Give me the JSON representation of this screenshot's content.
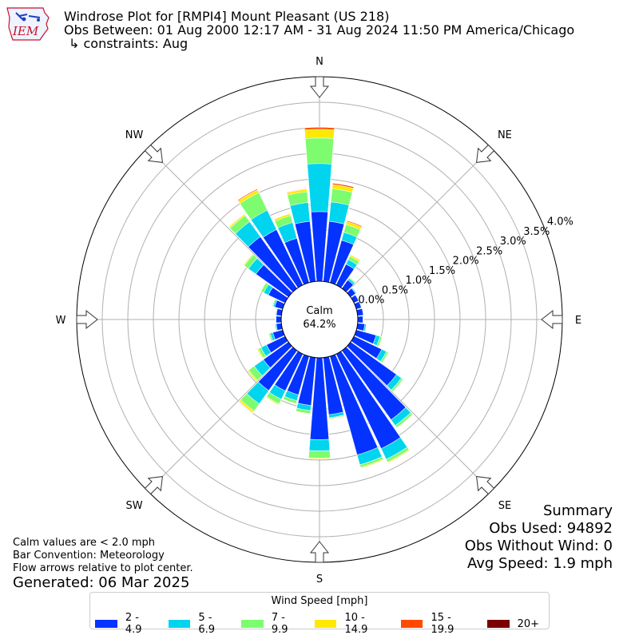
{
  "header": {
    "title_line1": "Windrose Plot for [RMPI4] Mount Pleasant (US 218)",
    "title_line2": "Obs Between: 01 Aug 2000 12:17 AM - 31 Aug 2024 11:50 PM America/Chicago",
    "title_line3": "↳ constraints: Aug",
    "logo_text": "IEM"
  },
  "footer_left": {
    "line1": "Calm values are < 2.0 mph",
    "line2": "Bar Convention: Meteorology",
    "line3": "Flow arrows relative to plot center.",
    "generated": "Generated: 06 Mar 2025"
  },
  "summary": {
    "title": "Summary",
    "obs_used": "Obs Used: 94892",
    "obs_without_wind": "Obs Without Wind: 0",
    "avg_speed": "Avg Speed: 1.9 mph"
  },
  "chart_data": {
    "type": "windrose",
    "calm_label": "Calm",
    "calm_value": "64.2%",
    "directions": [
      "N",
      "NE",
      "E",
      "SE",
      "S",
      "SW",
      "W",
      "NW"
    ],
    "radial_ticks": [
      "0.0%",
      "0.5%",
      "1.0%",
      "1.5%",
      "2.0%",
      "2.5%",
      "3.0%",
      "3.5%",
      "4.0%"
    ],
    "radial_range": [
      0.0,
      4.0
    ],
    "legend_title": "Wind Speed [mph]",
    "bins": [
      {
        "name": "2 - 4.9",
        "color": "#0433ff"
      },
      {
        "name": "5 - 6.9",
        "color": "#00d4ee"
      },
      {
        "name": "7 - 9.9",
        "color": "#7cfc6e"
      },
      {
        "name": "10 - 14.9",
        "color": "#ffe900"
      },
      {
        "name": "15 - 19.9",
        "color": "#ff4a00"
      },
      {
        "name": "20+",
        "color": "#7a0000"
      }
    ],
    "sector_width_deg": 10,
    "sectors": [
      {
        "dir": 0,
        "values": [
          1.36,
          2.3,
          2.8,
          2.97,
          3.01,
          3.01
        ]
      },
      {
        "dir": 10,
        "values": [
          1.18,
          1.56,
          1.82,
          1.9,
          1.93,
          1.93
        ]
      },
      {
        "dir": 20,
        "values": [
          0.86,
          1.02,
          1.18,
          1.24,
          1.26,
          1.26
        ]
      },
      {
        "dir": 30,
        "values": [
          0.45,
          0.55,
          0.62,
          0.65,
          0.66,
          0.66
        ]
      },
      {
        "dir": 40,
        "values": [
          0.2,
          0.24,
          0.26,
          0.27,
          0.27,
          0.27
        ]
      },
      {
        "dir": 50,
        "values": [
          0.12,
          0.14,
          0.15,
          0.15,
          0.15,
          0.15
        ]
      },
      {
        "dir": 60,
        "values": [
          0.1,
          0.11,
          0.12,
          0.12,
          0.12,
          0.12
        ]
      },
      {
        "dir": 70,
        "values": [
          0.1,
          0.11,
          0.12,
          0.12,
          0.12,
          0.12
        ]
      },
      {
        "dir": 80,
        "values": [
          0.11,
          0.12,
          0.13,
          0.13,
          0.13,
          0.13
        ]
      },
      {
        "dir": 90,
        "values": [
          0.1,
          0.11,
          0.12,
          0.12,
          0.12,
          0.12
        ]
      },
      {
        "dir": 100,
        "values": [
          0.14,
          0.17,
          0.18,
          0.18,
          0.18,
          0.18
        ]
      },
      {
        "dir": 110,
        "values": [
          0.4,
          0.48,
          0.52,
          0.53,
          0.53,
          0.53
        ]
      },
      {
        "dir": 120,
        "values": [
          0.6,
          0.7,
          0.74,
          0.75,
          0.75,
          0.75
        ]
      },
      {
        "dir": 130,
        "values": [
          1.1,
          1.22,
          1.26,
          1.27,
          1.27,
          1.27
        ]
      },
      {
        "dir": 140,
        "values": [
          1.66,
          1.8,
          1.85,
          1.86,
          1.86,
          1.86
        ]
      },
      {
        "dir": 150,
        "values": [
          2.05,
          2.28,
          2.34,
          2.36,
          2.36,
          2.36
        ]
      },
      {
        "dir": 160,
        "values": [
          2.0,
          2.2,
          2.25,
          2.27,
          2.27,
          2.27
        ]
      },
      {
        "dir": 170,
        "values": [
          1.12,
          1.18,
          1.2,
          1.21,
          1.21,
          1.21
        ]
      },
      {
        "dir": 180,
        "values": [
          1.6,
          1.82,
          1.96,
          1.98,
          1.98,
          1.98
        ]
      },
      {
        "dir": 190,
        "values": [
          0.94,
          1.04,
          1.1,
          1.11,
          1.11,
          1.11
        ]
      },
      {
        "dir": 200,
        "values": [
          0.78,
          0.9,
          0.96,
          0.97,
          0.97,
          0.97
        ]
      },
      {
        "dir": 210,
        "values": [
          0.8,
          0.98,
          1.08,
          1.1,
          1.1,
          1.1
        ]
      },
      {
        "dir": 220,
        "values": [
          0.96,
          1.28,
          1.45,
          1.49,
          1.5,
          1.5
        ]
      },
      {
        "dir": 230,
        "values": [
          0.6,
          0.82,
          0.95,
          0.98,
          0.98,
          0.98
        ]
      },
      {
        "dir": 240,
        "values": [
          0.4,
          0.52,
          0.58,
          0.6,
          0.6,
          0.6
        ]
      },
      {
        "dir": 250,
        "values": [
          0.2,
          0.25,
          0.28,
          0.29,
          0.29,
          0.29
        ]
      },
      {
        "dir": 260,
        "values": [
          0.1,
          0.12,
          0.13,
          0.13,
          0.13,
          0.13
        ]
      },
      {
        "dir": 270,
        "values": [
          0.1,
          0.11,
          0.12,
          0.12,
          0.12,
          0.12
        ]
      },
      {
        "dir": 280,
        "values": [
          0.1,
          0.11,
          0.12,
          0.12,
          0.12,
          0.12
        ]
      },
      {
        "dir": 290,
        "values": [
          0.16,
          0.19,
          0.21,
          0.21,
          0.21,
          0.21
        ]
      },
      {
        "dir": 300,
        "values": [
          0.36,
          0.46,
          0.52,
          0.53,
          0.53,
          0.53
        ]
      },
      {
        "dir": 310,
        "values": [
          0.78,
          0.96,
          1.06,
          1.08,
          1.08,
          1.08
        ]
      },
      {
        "dir": 320,
        "values": [
          1.24,
          1.6,
          1.75,
          1.78,
          1.78,
          1.78
        ]
      },
      {
        "dir": 330,
        "values": [
          1.2,
          1.62,
          2.0,
          2.06,
          2.08,
          2.08
        ]
      },
      {
        "dir": 340,
        "values": [
          0.9,
          1.22,
          1.36,
          1.4,
          1.4,
          1.4
        ]
      },
      {
        "dir": 350,
        "values": [
          1.18,
          1.55,
          1.76,
          1.81,
          1.82,
          1.82
        ]
      }
    ]
  }
}
